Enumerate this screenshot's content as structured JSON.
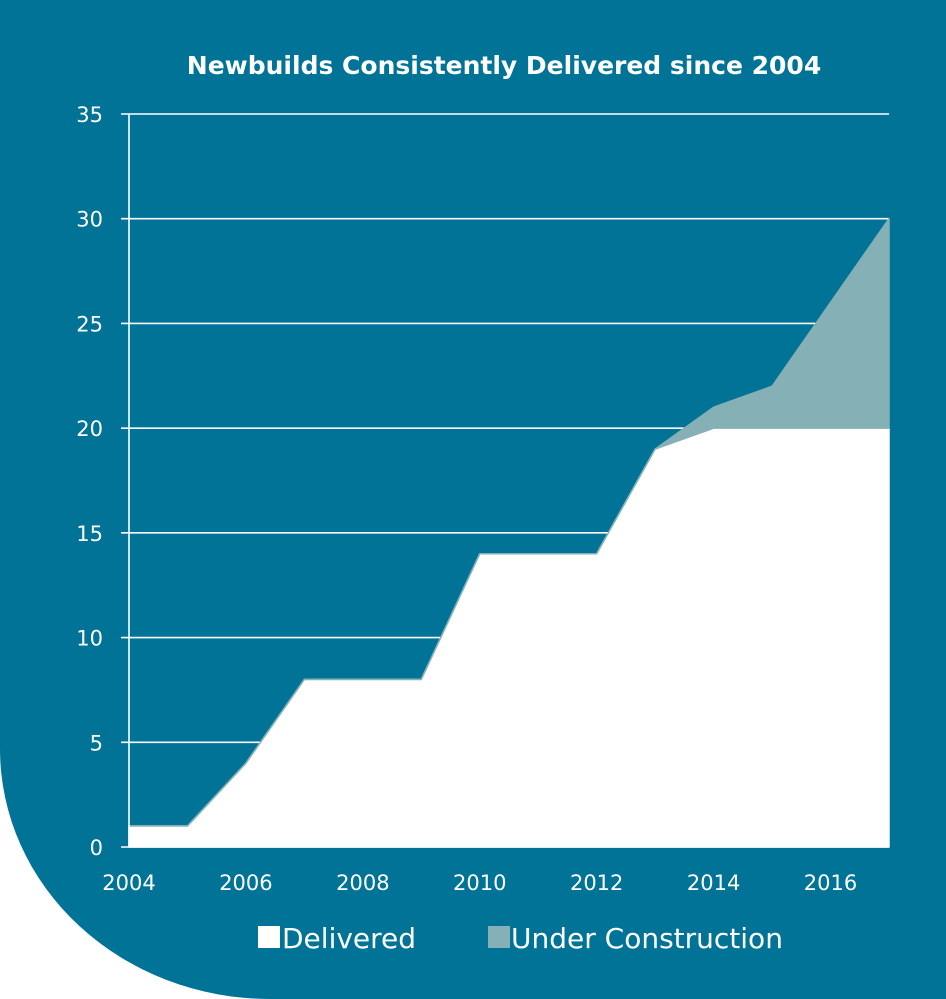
{
  "chart_data": {
    "type": "area",
    "title": "Newbuilds Consistently Delivered since 2004",
    "xlabel": "",
    "ylabel": "",
    "stacked": true,
    "x": [
      2004,
      2005,
      2006,
      2007,
      2008,
      2009,
      2010,
      2011,
      2012,
      2013,
      2014,
      2015,
      2016,
      2017
    ],
    "series": [
      {
        "name": "Delivered",
        "color": "#ffffff",
        "values": [
          1,
          1,
          4,
          8,
          8,
          8,
          14,
          14,
          14,
          19,
          20,
          20,
          20,
          20
        ]
      },
      {
        "name": "Under Construction",
        "color": "#85b0b5",
        "values": [
          0,
          0,
          0,
          0,
          0,
          0,
          0,
          0,
          0,
          0,
          1,
          2,
          6,
          10
        ]
      }
    ],
    "xlim": [
      2004,
      2017
    ],
    "ylim": [
      0,
      35
    ],
    "x_ticks": [
      "2004",
      "2006",
      "2008",
      "2010",
      "2012",
      "2014",
      "2016"
    ],
    "y_ticks": [
      "0",
      "5",
      "10",
      "15",
      "20",
      "25",
      "30",
      "35"
    ],
    "grid": true,
    "legend": "bottom",
    "background_color": "#007396",
    "text_color": "#ffffff"
  }
}
